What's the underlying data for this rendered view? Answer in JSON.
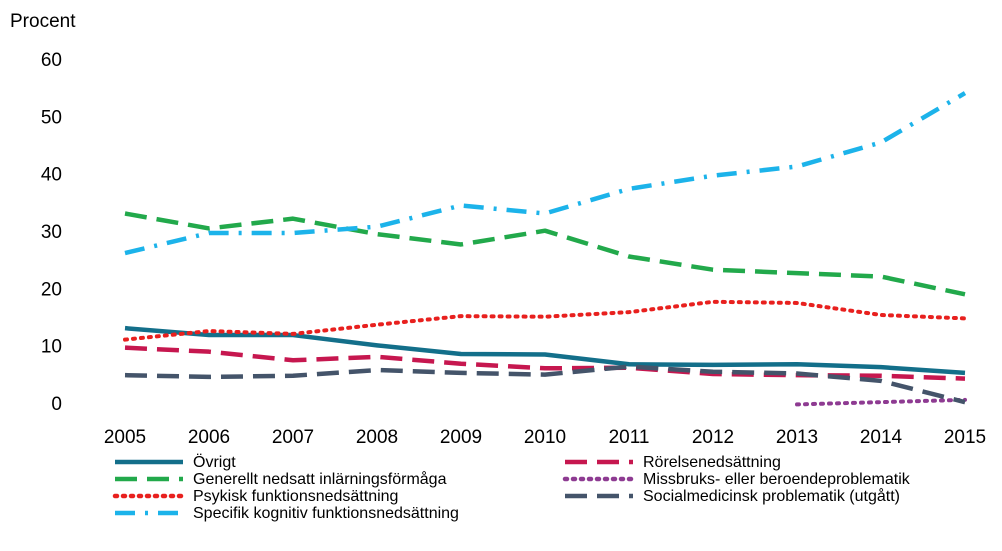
{
  "chart_data": {
    "type": "line",
    "y_label": "Procent",
    "categories": [
      "2005",
      "2006",
      "2007",
      "2008",
      "2009",
      "2010",
      "2011",
      "2012",
      "2013",
      "2014",
      "2015"
    ],
    "ylim": [
      0,
      60
    ],
    "yticks": [
      0,
      10,
      20,
      30,
      40,
      50,
      60
    ],
    "grid": false,
    "series": [
      {
        "name": "Övrigt",
        "color": "#136f8a",
        "dash": "solid",
        "values": [
          13.4,
          12.2,
          12.2,
          10.4,
          8.9,
          8.8,
          7.1,
          7.0,
          7.1,
          6.6,
          5.6
        ]
      },
      {
        "name": "Generellt nedsatt inlärningsförmåga",
        "color": "#22a94b",
        "dash": "dashed",
        "values": [
          33.4,
          30.8,
          32.5,
          29.8,
          28.0,
          30.4,
          25.9,
          23.6,
          23.0,
          22.4,
          19.3
        ]
      },
      {
        "name": "Psykisk funktionsnedsättning",
        "color": "#e8201e",
        "dash": "dotted",
        "values": [
          11.4,
          12.9,
          12.4,
          14.0,
          15.5,
          15.4,
          16.2,
          18.0,
          17.8,
          15.7,
          15.1
        ]
      },
      {
        "name": "Specifik kognitiv funktionsnedsättning",
        "color": "#1cb3ea",
        "dash": "dashdot",
        "values": [
          26.5,
          30.0,
          30.0,
          31.1,
          34.8,
          33.4,
          37.7,
          40.0,
          41.6,
          45.8,
          54.4
        ]
      },
      {
        "name": "Rörelsenedsättning",
        "color": "#c6174f",
        "dash": "dashed",
        "values": [
          10.0,
          9.3,
          7.8,
          8.4,
          7.2,
          6.4,
          6.5,
          5.4,
          5.2,
          5.1,
          4.6
        ]
      },
      {
        "name": "Missbruks- eller beroendeproblematik",
        "color": "#8e3b92",
        "dash": "dotted",
        "values": [
          null,
          null,
          null,
          null,
          null,
          null,
          null,
          null,
          0.1,
          0.5,
          0.9
        ]
      },
      {
        "name": "Socialmedicinsk problematik (utgått)",
        "color": "#44546a",
        "dash": "dashed",
        "values": [
          5.2,
          4.9,
          5.1,
          6.1,
          5.6,
          5.3,
          6.7,
          5.8,
          5.5,
          4.2,
          0.5
        ]
      }
    ]
  }
}
